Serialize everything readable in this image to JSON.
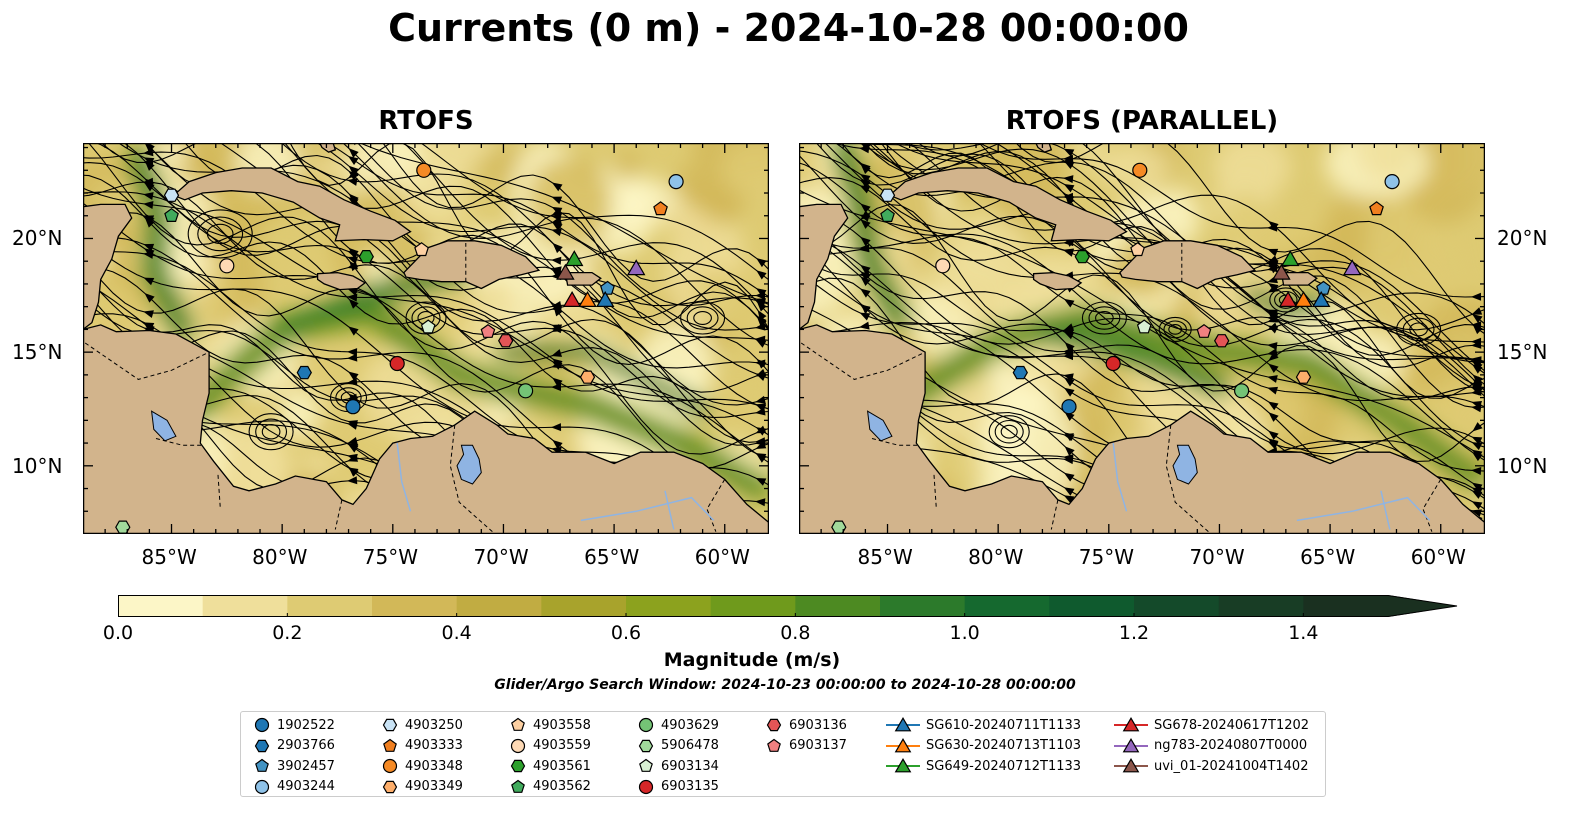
{
  "title": "Currents (0 m) - 2024-10-28 00:00:00",
  "chart_data": [
    {
      "type": "heatmap",
      "title": "RTOFS",
      "variable": "surface current magnitude with streamlines",
      "lon_range": [
        -89,
        -58
      ],
      "lat_range": [
        7,
        24
      ],
      "x_ticks": [
        "85°W",
        "80°W",
        "75°W",
        "70°W",
        "65°W",
        "60°W"
      ],
      "y_ticks": [
        "20°N",
        "15°N",
        "10°N"
      ]
    },
    {
      "type": "heatmap",
      "title": "RTOFS (PARALLEL)",
      "variable": "surface current magnitude with streamlines",
      "lon_range": [
        -89,
        -58
      ],
      "lat_range": [
        7,
        24
      ],
      "x_ticks": [
        "85°W",
        "80°W",
        "75°W",
        "70°W",
        "65°W",
        "60°W"
      ],
      "y_ticks": [
        "20°N",
        "15°N",
        "10°N"
      ]
    }
  ],
  "colorbar": {
    "label": "Magnitude (m/s)",
    "range": [
      0,
      1.5
    ],
    "extend": "max",
    "ticks": [
      "0.0",
      "0.2",
      "0.4",
      "0.6",
      "0.8",
      "1.0",
      "1.2",
      "1.4"
    ],
    "colors": [
      "#fcf6c7",
      "#efdf9b",
      "#decb73",
      "#d2b858",
      "#c1ac42",
      "#a8a32c",
      "#8ca21e",
      "#6f9a1c",
      "#4d8a22",
      "#2c7a2b",
      "#15692f",
      "#0f5a2e",
      "#144a2a",
      "#183d25",
      "#1a3020"
    ]
  },
  "search_window": "Glider/Argo Search Window: 2024-10-23 00:00:00 to 2024-10-28 00:00:00",
  "floats": [
    {
      "id": "1902522",
      "marker": "circle",
      "color": "#1f77b4",
      "lon": -76.8,
      "lat": 12.6
    },
    {
      "id": "2903766",
      "marker": "hexagon",
      "color": "#1f77b4",
      "lon": -79.0,
      "lat": 14.1
    },
    {
      "id": "3902457",
      "marker": "pentagon",
      "color": "#4393c3",
      "lon": -65.3,
      "lat": 17.8
    },
    {
      "id": "4903244",
      "marker": "circle",
      "color": "#8fc2e8",
      "lon": -62.2,
      "lat": 22.5
    },
    {
      "id": "4903250",
      "marker": "hexagon",
      "color": "#c9e3f5",
      "lon": -85.0,
      "lat": 21.9
    },
    {
      "id": "4903333",
      "marker": "pentagon",
      "color": "#f07f20",
      "lon": -62.9,
      "lat": 21.3
    },
    {
      "id": "4903348",
      "marker": "circle",
      "color": "#f58a25",
      "lon": -73.6,
      "lat": 23.0
    },
    {
      "id": "4903349",
      "marker": "hexagon",
      "color": "#fdae6b",
      "lon": -66.2,
      "lat": 13.9
    },
    {
      "id": "4903558",
      "marker": "pentagon",
      "color": "#fdd0a2",
      "lon": -73.7,
      "lat": 19.5
    },
    {
      "id": "4903559",
      "marker": "circle",
      "color": "#fdd9b5",
      "lon": -82.5,
      "lat": 18.8
    },
    {
      "id": "4903561",
      "marker": "hexagon",
      "color": "#2ca02c",
      "lon": -76.2,
      "lat": 19.2
    },
    {
      "id": "4903562",
      "marker": "pentagon",
      "color": "#41ab5d",
      "lon": -85.0,
      "lat": 21.0
    },
    {
      "id": "4903629",
      "marker": "circle",
      "color": "#74c476",
      "lon": -69.0,
      "lat": 13.3
    },
    {
      "id": "5906478",
      "marker": "hexagon",
      "color": "#a1d99b",
      "lon": -87.2,
      "lat": 7.3
    },
    {
      "id": "6903134",
      "marker": "pentagon",
      "color": "#d9f0d3",
      "lon": -73.4,
      "lat": 16.1
    },
    {
      "id": "6903135",
      "marker": "circle",
      "color": "#d62728",
      "lon": -74.8,
      "lat": 14.5
    },
    {
      "id": "6903136",
      "marker": "hexagon",
      "color": "#e45556",
      "lon": -69.9,
      "lat": 15.5
    },
    {
      "id": "6903137",
      "marker": "pentagon",
      "color": "#f08080",
      "lon": -70.7,
      "lat": 15.9
    }
  ],
  "gliders": [
    {
      "id": "SG610-20240711T1133",
      "color": "#1f77b4",
      "lon": -65.4,
      "lat": 17.3
    },
    {
      "id": "SG630-20240713T1103",
      "color": "#ff7f0e",
      "lon": -66.2,
      "lat": 17.3
    },
    {
      "id": "SG649-20240712T1133",
      "color": "#2ca02c",
      "lon": -66.8,
      "lat": 19.1
    },
    {
      "id": "SG678-20240617T1202",
      "color": "#d62728",
      "lon": -66.9,
      "lat": 17.3
    },
    {
      "id": "ng783-20240807T0000",
      "color": "#9467bd",
      "lon": -64.0,
      "lat": 18.7
    },
    {
      "id": "uvi_01-20241004T1402",
      "color": "#8c564b",
      "lon": -67.2,
      "lat": 18.5
    }
  ]
}
